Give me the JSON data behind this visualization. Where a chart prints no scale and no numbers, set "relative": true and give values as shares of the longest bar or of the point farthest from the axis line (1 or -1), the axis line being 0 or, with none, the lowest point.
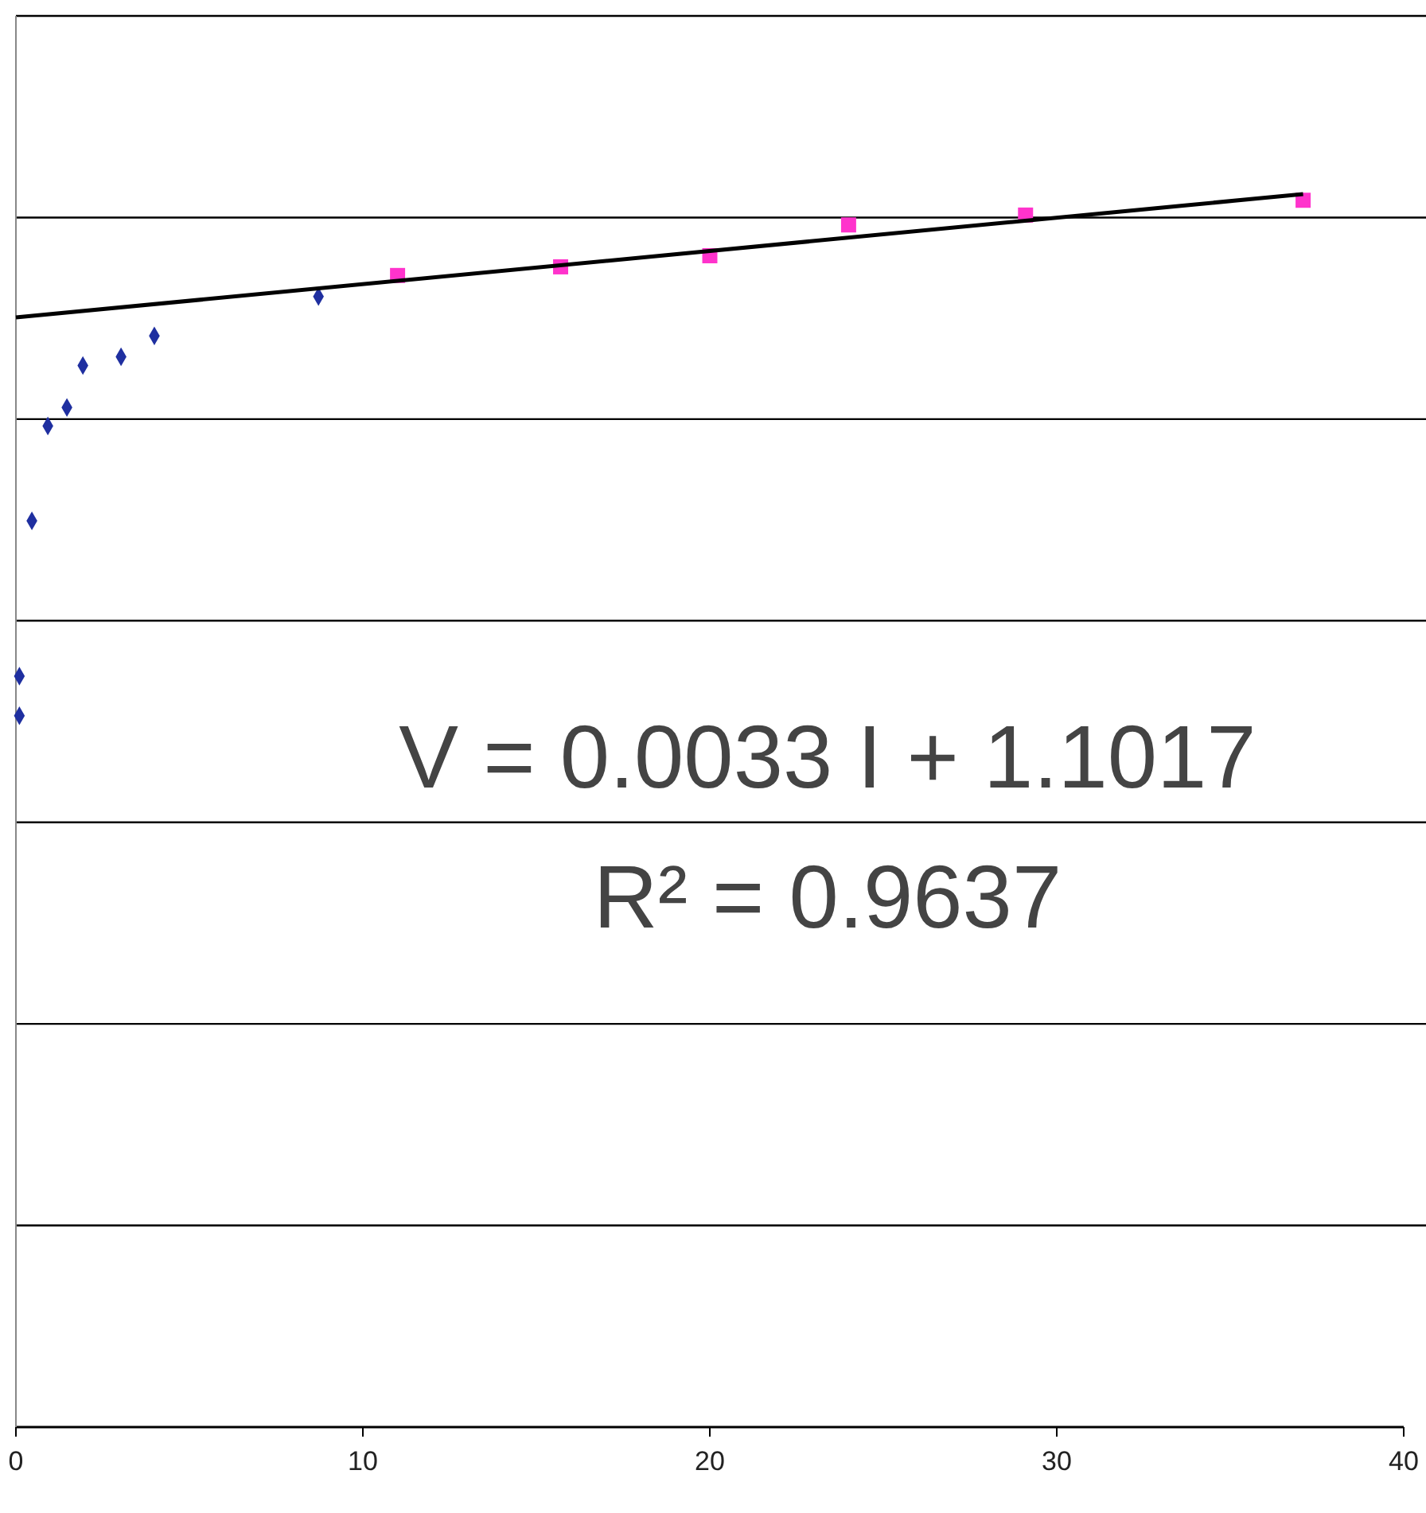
{
  "chart_data": {
    "type": "scatter",
    "relative": true,
    "grid": "y",
    "xlim": [
      0,
      40
    ],
    "xticks": [
      0,
      10,
      20,
      30,
      40
    ],
    "tick_labels": "x",
    "series": [
      {
        "color": "#1f2fa0",
        "marker": "diamond",
        "x": [
          0.1,
          0.1,
          0.46,
          0.92,
          1.47,
          1.93,
          3.03,
          3.99,
          8.72
        ],
        "values": [
          0.609,
          0.577,
          0.735,
          0.812,
          0.827,
          0.861,
          0.868,
          0.885,
          0.917
        ]
      },
      {
        "color": "#ff33cc",
        "marker": "square",
        "x": [
          11.0,
          15.7,
          20.0,
          24.0,
          29.1,
          37.1
        ],
        "values": [
          0.934,
          0.941,
          0.95,
          0.975,
          0.983,
          0.995
        ]
      },
      {
        "type": "line",
        "color": "#000000",
        "marker": "none",
        "x": [
          0,
          37.1
        ],
        "values": [
          0.9,
          1.0
        ]
      }
    ],
    "annotations": [
      "V = 0.0033 I + 1.1017",
      "R² = 0.9637"
    ]
  }
}
